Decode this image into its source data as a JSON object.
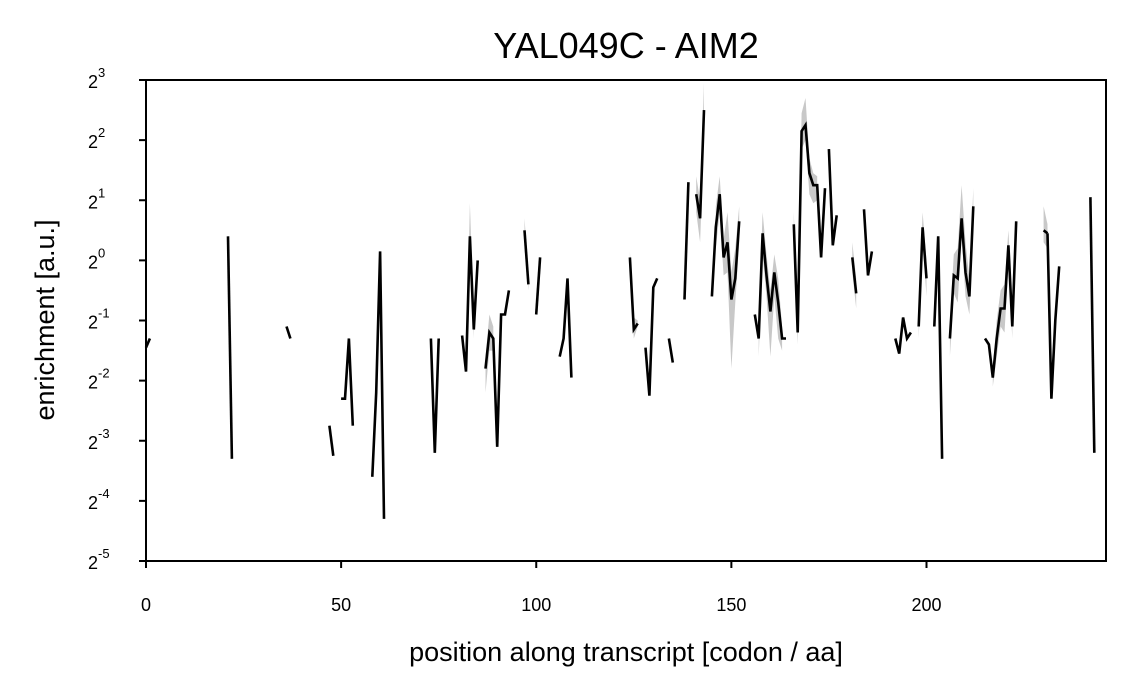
{
  "chart_data": {
    "type": "line",
    "title": "YAL049C - AIM2",
    "xlabel": "position along transcript [codon / aa]",
    "ylabel": "enrichment [a.u.]",
    "xlim": [
      0,
      246
    ],
    "ylim_log2": [
      -5,
      3
    ],
    "yscale": "log2",
    "grid": false,
    "x_ticks": [
      0,
      50,
      100,
      150,
      200
    ],
    "y_tick_labels": [
      {
        "base": "2",
        "exp": "3"
      },
      {
        "base": "2",
        "exp": "2"
      },
      {
        "base": "2",
        "exp": "1"
      },
      {
        "base": "2",
        "exp": "0"
      },
      {
        "base": "2",
        "exp": "-1"
      },
      {
        "base": "2",
        "exp": "-2"
      },
      {
        "base": "2",
        "exp": "-3"
      },
      {
        "base": "2",
        "exp": "-4"
      },
      {
        "base": "2",
        "exp": "-5"
      }
    ],
    "line_color": "#000000",
    "band_color": "#c8c8c8",
    "segments": [
      [
        [
          0,
          -1.45
        ],
        [
          1,
          -1.3
        ]
      ],
      [
        [
          21,
          0.4
        ],
        [
          22,
          -3.3
        ]
      ],
      [
        [
          36,
          -1.1
        ],
        [
          37,
          -1.3
        ]
      ],
      [
        [
          47,
          -2.75
        ],
        [
          48,
          -3.25
        ]
      ],
      [
        [
          50,
          -2.3
        ],
        [
          51,
          -2.3
        ],
        [
          52,
          -1.3
        ],
        [
          53,
          -2.75
        ]
      ],
      [
        [
          58,
          -3.6
        ],
        [
          59,
          -2.2
        ],
        [
          60,
          0.15
        ],
        [
          61,
          -4.3
        ]
      ],
      [
        [
          73,
          -1.3
        ],
        [
          74,
          -3.2
        ],
        [
          75,
          -1.3
        ]
      ],
      [
        [
          81,
          -1.25
        ],
        [
          82,
          -1.85
        ],
        [
          83,
          0.4
        ],
        [
          84,
          -1.15
        ],
        [
          85,
          0.0
        ]
      ],
      [
        [
          87,
          -1.8
        ],
        [
          88,
          -1.2
        ],
        [
          89,
          -1.3
        ],
        [
          90,
          -3.1
        ],
        [
          91,
          -0.9
        ],
        [
          92,
          -0.9
        ],
        [
          93,
          -0.5
        ]
      ],
      [
        [
          97,
          0.5
        ],
        [
          98,
          -0.4
        ]
      ],
      [
        [
          100,
          -0.9
        ],
        [
          101,
          0.05
        ]
      ],
      [
        [
          106,
          -1.6
        ],
        [
          107,
          -1.3
        ],
        [
          108,
          -0.3
        ],
        [
          109,
          -1.95
        ]
      ],
      [
        [
          124,
          0.05
        ],
        [
          125,
          -1.15
        ],
        [
          126,
          -1.05
        ]
      ],
      [
        [
          128,
          -1.45
        ],
        [
          129,
          -2.25
        ],
        [
          130,
          -0.45
        ],
        [
          131,
          -0.3
        ]
      ],
      [
        [
          134,
          -1.3
        ],
        [
          135,
          -1.7
        ]
      ],
      [
        [
          138,
          -0.65
        ],
        [
          139,
          1.3
        ]
      ],
      [
        [
          141,
          1.1
        ],
        [
          142,
          0.7
        ],
        [
          143,
          2.5
        ]
      ],
      [
        [
          145,
          -0.6
        ],
        [
          146,
          0.55
        ],
        [
          147,
          1.1
        ],
        [
          148,
          0.05
        ],
        [
          149,
          0.3
        ],
        [
          150,
          -0.65
        ],
        [
          151,
          -0.3
        ],
        [
          152,
          0.65
        ]
      ],
      [
        [
          156,
          -0.9
        ],
        [
          157,
          -1.3
        ],
        [
          158,
          0.45
        ],
        [
          159,
          -0.25
        ],
        [
          160,
          -0.85
        ],
        [
          161,
          -0.2
        ],
        [
          162,
          -0.7
        ],
        [
          163,
          -1.3
        ],
        [
          164,
          -1.3
        ]
      ],
      [
        [
          166,
          0.6
        ],
        [
          167,
          -1.2
        ],
        [
          168,
          2.15
        ],
        [
          169,
          2.25
        ],
        [
          170,
          1.45
        ],
        [
          171,
          1.25
        ],
        [
          172,
          1.25
        ],
        [
          173,
          0.05
        ],
        [
          174,
          1.2
        ]
      ],
      [
        [
          175,
          1.85
        ],
        [
          176,
          0.25
        ],
        [
          177,
          0.75
        ]
      ],
      [
        [
          181,
          0.05
        ],
        [
          182,
          -0.55
        ]
      ],
      [
        [
          184,
          0.85
        ],
        [
          185,
          -0.25
        ],
        [
          186,
          0.15
        ]
      ],
      [
        [
          192,
          -1.3
        ],
        [
          193,
          -1.55
        ],
        [
          194,
          -0.95
        ],
        [
          195,
          -1.3
        ],
        [
          196,
          -1.2
        ]
      ],
      [
        [
          198,
          -1.1
        ],
        [
          199,
          0.55
        ],
        [
          200,
          -0.3
        ]
      ],
      [
        [
          202,
          -1.1
        ],
        [
          203,
          0.4
        ],
        [
          204,
          -3.3
        ]
      ],
      [
        [
          206,
          -1.3
        ],
        [
          207,
          -0.25
        ],
        [
          208,
          -0.3
        ],
        [
          209,
          0.7
        ],
        [
          210,
          -0.2
        ],
        [
          211,
          -0.6
        ],
        [
          212,
          0.9
        ]
      ],
      [
        [
          215,
          -1.3
        ],
        [
          216,
          -1.4
        ],
        [
          217,
          -1.95
        ],
        [
          218,
          -1.3
        ],
        [
          219,
          -0.8
        ],
        [
          220,
          -0.8
        ],
        [
          221,
          0.25
        ],
        [
          222,
          -1.1
        ],
        [
          223,
          0.65
        ]
      ],
      [
        [
          230,
          0.5
        ],
        [
          231,
          0.45
        ]
      ],
      [
        [
          231,
          0.45
        ],
        [
          232,
          -2.3
        ],
        [
          233,
          -1.0
        ],
        [
          234,
          -0.1
        ]
      ],
      [
        [
          242,
          1.05
        ],
        [
          243,
          -3.2
        ]
      ]
    ],
    "bands": [
      [
        [
          82,
          -1.85,
          -1.85
        ],
        [
          83,
          0.0,
          0.95
        ],
        [
          84,
          -1.3,
          -1.0
        ]
      ],
      [
        [
          87,
          -2.2,
          -1.6
        ],
        [
          88,
          -1.5,
          -0.9
        ],
        [
          89,
          -1.5,
          -1.1
        ]
      ],
      [
        [
          97,
          0.2,
          0.7
        ],
        [
          98,
          -0.5,
          -0.2
        ]
      ],
      [
        [
          124,
          -0.05,
          0.15
        ],
        [
          125,
          -1.3,
          -0.95
        ],
        [
          126,
          -1.1,
          -1.0
        ]
      ],
      [
        [
          141,
          0.8,
          1.4
        ],
        [
          142,
          0.3,
          1.0
        ],
        [
          143,
          2.1,
          2.95
        ]
      ],
      [
        [
          146,
          0.2,
          0.9
        ],
        [
          147,
          0.8,
          1.4
        ],
        [
          148,
          -0.25,
          0.35
        ],
        [
          149,
          -0.2,
          0.8
        ],
        [
          150,
          -1.8,
          -0.2
        ],
        [
          151,
          -0.7,
          0.2
        ],
        [
          152,
          0.3,
          0.9
        ]
      ],
      [
        [
          157,
          -1.6,
          -1.0
        ],
        [
          158,
          0.1,
          0.8
        ],
        [
          159,
          -0.6,
          0.1
        ],
        [
          160,
          -1.6,
          -0.5
        ],
        [
          161,
          -0.6,
          0.1
        ],
        [
          162,
          -1.3,
          -0.3
        ],
        [
          163,
          -1.5,
          -1.1
        ]
      ],
      [
        [
          166,
          0.4,
          0.8
        ],
        [
          167,
          -1.4,
          -1.0
        ],
        [
          168,
          1.85,
          2.45
        ],
        [
          169,
          2.0,
          2.7
        ],
        [
          170,
          1.1,
          1.7
        ],
        [
          171,
          0.95,
          1.45
        ],
        [
          172,
          1.0,
          1.4
        ]
      ],
      [
        [
          181,
          -0.2,
          0.3
        ],
        [
          182,
          -0.8,
          -0.3
        ]
      ],
      [
        [
          198,
          -1.3,
          -0.9
        ],
        [
          199,
          0.3,
          0.8
        ],
        [
          200,
          -0.6,
          0.0
        ]
      ],
      [
        [
          206,
          -1.6,
          -1.0
        ],
        [
          207,
          -0.55,
          0.1
        ],
        [
          208,
          -0.7,
          0.2
        ],
        [
          209,
          0.4,
          1.25
        ],
        [
          210,
          -0.6,
          0.3
        ],
        [
          211,
          -0.9,
          -0.3
        ],
        [
          212,
          0.6,
          1.2
        ]
      ],
      [
        [
          217,
          -2.1,
          -1.8
        ],
        [
          218,
          -1.6,
          -1.0
        ],
        [
          219,
          -1.1,
          -0.5
        ],
        [
          220,
          -1.2,
          -0.4
        ],
        [
          221,
          -0.1,
          0.5
        ],
        [
          222,
          -1.3,
          -0.8
        ]
      ],
      [
        [
          230,
          0.3,
          0.9
        ],
        [
          231,
          0.2,
          0.6
        ]
      ]
    ]
  }
}
